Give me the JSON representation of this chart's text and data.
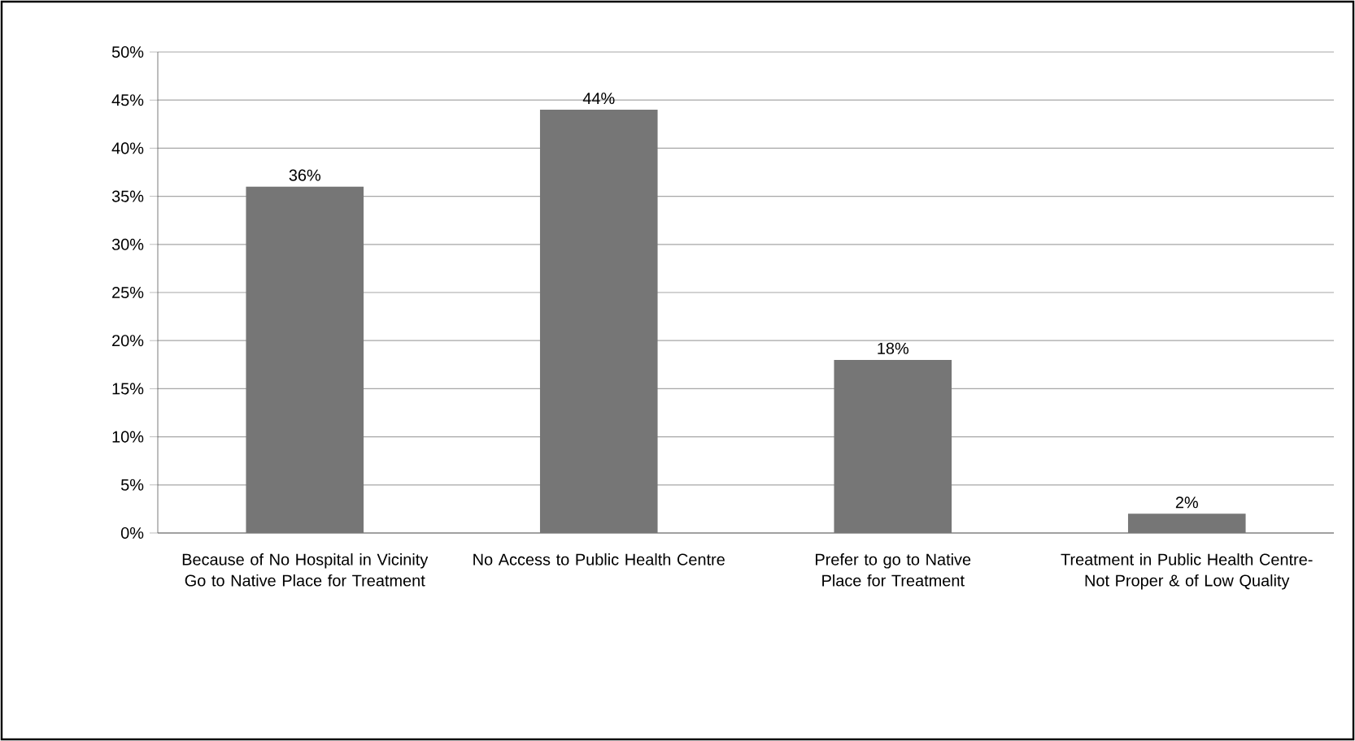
{
  "chart_data": {
    "type": "bar",
    "categories": [
      "Because of No Hospital in Vicinity Go to Native Place for Treatment",
      "No Access to Public Health Centre",
      "Prefer to go to Native Place for Treatment",
      "Treatment in Public Health Centre- Not Proper & of Low Quality"
    ],
    "values": [
      36,
      44,
      18,
      2
    ],
    "value_labels": [
      "36%",
      "44%",
      "18%",
      "2%"
    ],
    "color": "#767676",
    "ylim": [
      0,
      50
    ],
    "yticks": [
      {
        "value": 0,
        "label": "0%"
      },
      {
        "value": 5,
        "label": "5%"
      },
      {
        "value": 10,
        "label": "10%"
      },
      {
        "value": 15,
        "label": "15%"
      },
      {
        "value": 20,
        "label": "20%"
      },
      {
        "value": 25,
        "label": "25%"
      },
      {
        "value": 30,
        "label": "30%"
      },
      {
        "value": 35,
        "label": "35%"
      },
      {
        "value": 40,
        "label": "40%"
      },
      {
        "value": 45,
        "label": "45%"
      },
      {
        "value": 50,
        "label": "50%"
      }
    ],
    "grid": "y"
  }
}
